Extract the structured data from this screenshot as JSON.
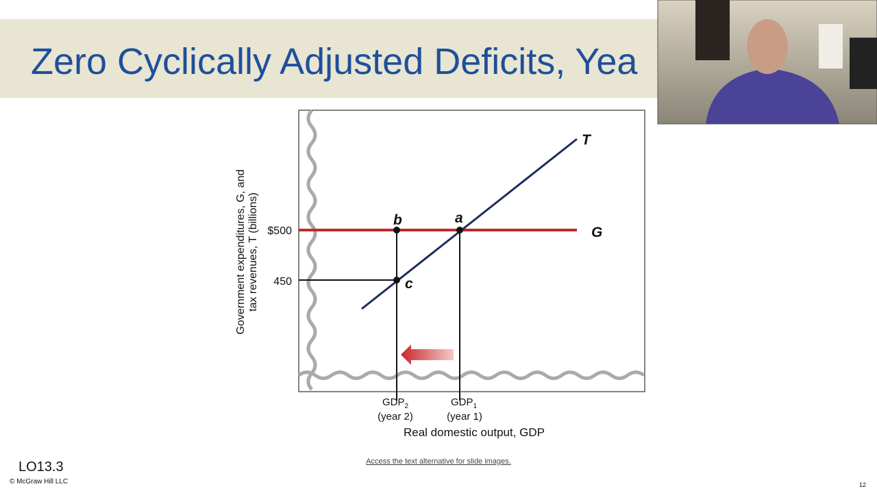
{
  "slide": {
    "title": "Zero Cyclically Adjusted Deficits, Yea",
    "diagram": {
      "y_axis_label": [
        "Government expenditures, G, and",
        "tax revenues, T (billions)"
      ],
      "y_ticks": [
        "$500",
        "450"
      ],
      "point_labels": [
        "a",
        "b",
        "c"
      ],
      "line_labels": [
        "T",
        "G"
      ],
      "x_ticks": [
        {
          "text": "GDP",
          "sub": "2",
          "note": "(year 2)"
        },
        {
          "text": "GDP",
          "sub": "1",
          "note": "(year 1)"
        }
      ],
      "x_axis_label": "Real domestic output, GDP"
    },
    "objective": "LO13.3",
    "copyright": "© McGraw Hill LLC",
    "link": "Access the text alternative for slide images.",
    "page_number": "12"
  }
}
